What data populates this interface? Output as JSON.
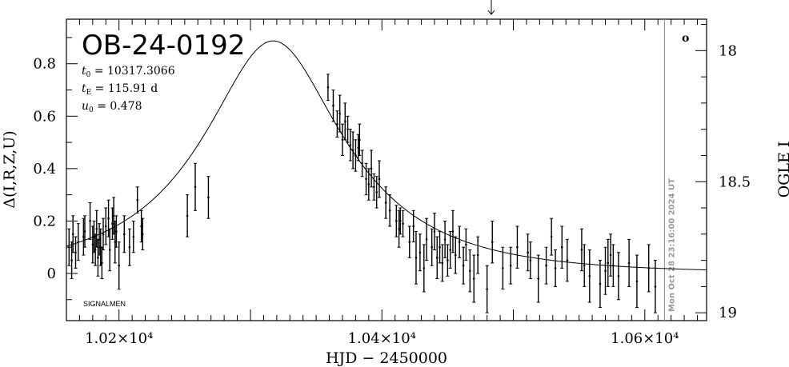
{
  "chart_data": {
    "type": "scatter",
    "title": "OB-24-0192",
    "params": {
      "t0": {
        "sym": "t",
        "sub": "0",
        "text": " = 10317.3066"
      },
      "tE": {
        "sym": "t",
        "sub": "E",
        "text": " = 115.91 d"
      },
      "u0": {
        "sym": "u",
        "sub": "0",
        "text": " = 0.478"
      }
    },
    "credit": "SIGNALMEN",
    "timestamp": "Mon Oct 28 23:16:00 2024 UT",
    "corner_mark": "o",
    "xlabel": "HJD − 2450000",
    "ylabel_left": "Δ(I,R,Z,U)",
    "ylabel_right": "OGLE I",
    "xlim": [
      10160,
      10647
    ],
    "ylim_left": [
      -0.18,
      0.97
    ],
    "ylim_right": [
      19.03,
      17.88
    ],
    "x_ticks": [
      {
        "value": 10200,
        "label": "1.02×10⁴"
      },
      {
        "value": 10400,
        "label": "1.04×10⁴"
      },
      {
        "value": 10600,
        "label": "1.06×10⁴"
      }
    ],
    "y_ticks_left": [
      {
        "value": 0,
        "label": "0"
      },
      {
        "value": 0.2,
        "label": "0.2"
      },
      {
        "value": 0.4,
        "label": "0.4"
      },
      {
        "value": 0.6,
        "label": "0.6"
      },
      {
        "value": 0.8,
        "label": "0.8"
      }
    ],
    "y_ticks_right": [
      {
        "value": 18,
        "label": "18"
      },
      {
        "value": 18.5,
        "label": "18.5"
      },
      {
        "value": 19,
        "label": "19"
      }
    ],
    "now_line_x": 10615,
    "model": {
      "t0": 10317.3066,
      "tE": 115.91,
      "u0": 0.478,
      "amp_scale": 0.887
    },
    "points": [
      {
        "x": 10162,
        "y": 0.1,
        "e": 0.07
      },
      {
        "x": 10164,
        "y": 0.05,
        "e": 0.07
      },
      {
        "x": 10165,
        "y": 0.15,
        "e": 0.07
      },
      {
        "x": 10167,
        "y": 0.08,
        "e": 0.06
      },
      {
        "x": 10169,
        "y": 0.12,
        "e": 0.07
      },
      {
        "x": 10173,
        "y": 0.14,
        "e": 0.07
      },
      {
        "x": 10174,
        "y": 0.16,
        "e": 0.06
      },
      {
        "x": 10178,
        "y": 0.2,
        "e": 0.07
      },
      {
        "x": 10180,
        "y": 0.11,
        "e": 0.07
      },
      {
        "x": 10181,
        "y": 0.14,
        "e": 0.06
      },
      {
        "x": 10182,
        "y": 0.09,
        "e": 0.06
      },
      {
        "x": 10183,
        "y": 0.17,
        "e": 0.07
      },
      {
        "x": 10184,
        "y": 0.06,
        "e": 0.07
      },
      {
        "x": 10185,
        "y": 0.13,
        "e": 0.06
      },
      {
        "x": 10186,
        "y": 0.1,
        "e": 0.07
      },
      {
        "x": 10187,
        "y": 0.04,
        "e": 0.06
      },
      {
        "x": 10188,
        "y": 0.15,
        "e": 0.06
      },
      {
        "x": 10190,
        "y": 0.18,
        "e": 0.07
      },
      {
        "x": 10192,
        "y": 0.21,
        "e": 0.07
      },
      {
        "x": 10193,
        "y": 0.09,
        "e": 0.08
      },
      {
        "x": 10195,
        "y": 0.19,
        "e": 0.06
      },
      {
        "x": 10196,
        "y": 0.22,
        "e": 0.07
      },
      {
        "x": 10197,
        "y": 0.12,
        "e": 0.08
      },
      {
        "x": 10198,
        "y": 0.16,
        "e": 0.06
      },
      {
        "x": 10200,
        "y": 0.03,
        "e": 0.09
      },
      {
        "x": 10204,
        "y": 0.15,
        "e": 0.07
      },
      {
        "x": 10208,
        "y": 0.1,
        "e": 0.07
      },
      {
        "x": 10211,
        "y": 0.14,
        "e": 0.06
      },
      {
        "x": 10214,
        "y": 0.28,
        "e": 0.05
      },
      {
        "x": 10217,
        "y": 0.18,
        "e": 0.06
      },
      {
        "x": 10218,
        "y": 0.15,
        "e": 0.06
      },
      {
        "x": 10252,
        "y": 0.22,
        "e": 0.08
      },
      {
        "x": 10258,
        "y": 0.33,
        "e": 0.09
      },
      {
        "x": 10268,
        "y": 0.29,
        "e": 0.08
      },
      {
        "x": 10359,
        "y": 0.71,
        "e": 0.05
      },
      {
        "x": 10363,
        "y": 0.64,
        "e": 0.06
      },
      {
        "x": 10366,
        "y": 0.57,
        "e": 0.05
      },
      {
        "x": 10368,
        "y": 0.61,
        "e": 0.07
      },
      {
        "x": 10370,
        "y": 0.51,
        "e": 0.06
      },
      {
        "x": 10372,
        "y": 0.58,
        "e": 0.07
      },
      {
        "x": 10374,
        "y": 0.55,
        "e": 0.05
      },
      {
        "x": 10376,
        "y": 0.49,
        "e": 0.06
      },
      {
        "x": 10378,
        "y": 0.47,
        "e": 0.07
      },
      {
        "x": 10380,
        "y": 0.45,
        "e": 0.06
      },
      {
        "x": 10382,
        "y": 0.48,
        "e": 0.05
      },
      {
        "x": 10383,
        "y": 0.51,
        "e": 0.06
      },
      {
        "x": 10385,
        "y": 0.42,
        "e": 0.05
      },
      {
        "x": 10388,
        "y": 0.36,
        "e": 0.06
      },
      {
        "x": 10390,
        "y": 0.34,
        "e": 0.06
      },
      {
        "x": 10392,
        "y": 0.4,
        "e": 0.07
      },
      {
        "x": 10394,
        "y": 0.33,
        "e": 0.05
      },
      {
        "x": 10396,
        "y": 0.31,
        "e": 0.06
      },
      {
        "x": 10398,
        "y": 0.36,
        "e": 0.07
      },
      {
        "x": 10403,
        "y": 0.27,
        "e": 0.06
      },
      {
        "x": 10406,
        "y": 0.24,
        "e": 0.06
      },
      {
        "x": 10411,
        "y": 0.2,
        "e": 0.06
      },
      {
        "x": 10413,
        "y": 0.17,
        "e": 0.07
      },
      {
        "x": 10414,
        "y": 0.2,
        "e": 0.05
      },
      {
        "x": 10416,
        "y": 0.19,
        "e": 0.05
      },
      {
        "x": 10421,
        "y": 0.12,
        "e": 0.06
      },
      {
        "x": 10424,
        "y": 0.18,
        "e": 0.06
      },
      {
        "x": 10426,
        "y": 0.06,
        "e": 0.1
      },
      {
        "x": 10429,
        "y": 0.08,
        "e": 0.07
      },
      {
        "x": 10432,
        "y": 0.02,
        "e": 0.09
      },
      {
        "x": 10434,
        "y": 0.13,
        "e": 0.08
      },
      {
        "x": 10438,
        "y": 0.1,
        "e": 0.07
      },
      {
        "x": 10440,
        "y": 0.16,
        "e": 0.07
      },
      {
        "x": 10442,
        "y": 0.06,
        "e": 0.08
      },
      {
        "x": 10444,
        "y": 0.1,
        "e": 0.06
      },
      {
        "x": 10446,
        "y": 0.04,
        "e": 0.07
      },
      {
        "x": 10448,
        "y": 0.13,
        "e": 0.07
      },
      {
        "x": 10450,
        "y": 0.05,
        "e": 0.06
      },
      {
        "x": 10452,
        "y": 0.09,
        "e": 0.07
      },
      {
        "x": 10454,
        "y": 0.16,
        "e": 0.08
      },
      {
        "x": 10456,
        "y": 0.07,
        "e": 0.07
      },
      {
        "x": 10459,
        "y": 0.12,
        "e": 0.06
      },
      {
        "x": 10462,
        "y": 0.03,
        "e": 0.07
      },
      {
        "x": 10464,
        "y": 0.11,
        "e": 0.06
      },
      {
        "x": 10467,
        "y": 0.01,
        "e": 0.08
      },
      {
        "x": 10470,
        "y": -0.02,
        "e": 0.09
      },
      {
        "x": 10473,
        "y": 0.07,
        "e": 0.07
      },
      {
        "x": 10480,
        "y": -0.06,
        "e": 0.09
      },
      {
        "x": 10484,
        "y": 0.12,
        "e": 0.08
      },
      {
        "x": 10492,
        "y": 0.02,
        "e": 0.08
      },
      {
        "x": 10498,
        "y": 0.03,
        "e": 0.07
      },
      {
        "x": 10503,
        "y": 0.1,
        "e": 0.08
      },
      {
        "x": 10511,
        "y": 0.08,
        "e": 0.07
      },
      {
        "x": 10513,
        "y": 0.05,
        "e": 0.07
      },
      {
        "x": 10519,
        "y": -0.02,
        "e": 0.09
      },
      {
        "x": 10525,
        "y": 0.03,
        "e": 0.07
      },
      {
        "x": 10529,
        "y": 0.14,
        "e": 0.07
      },
      {
        "x": 10532,
        "y": 0.02,
        "e": 0.07
      },
      {
        "x": 10537,
        "y": 0.1,
        "e": 0.08
      },
      {
        "x": 10541,
        "y": 0.05,
        "e": 0.08
      },
      {
        "x": 10552,
        "y": 0.09,
        "e": 0.08
      },
      {
        "x": 10554,
        "y": 0.03,
        "e": 0.08
      },
      {
        "x": 10558,
        "y": -0.01,
        "e": 0.1
      },
      {
        "x": 10566,
        "y": -0.04,
        "e": 0.09
      },
      {
        "x": 10570,
        "y": 0.01,
        "e": 0.09
      },
      {
        "x": 10572,
        "y": 0.04,
        "e": 0.09
      },
      {
        "x": 10574,
        "y": 0.07,
        "e": 0.08
      },
      {
        "x": 10576,
        "y": 0.03,
        "e": 0.08
      },
      {
        "x": 10580,
        "y": -0.01,
        "e": 0.09
      },
      {
        "x": 10588,
        "y": 0.04,
        "e": 0.09
      },
      {
        "x": 10594,
        "y": -0.03,
        "e": 0.1
      },
      {
        "x": 10603,
        "y": 0.02,
        "e": 0.09
      },
      {
        "x": 10608,
        "y": -0.05,
        "e": 0.1
      }
    ]
  }
}
